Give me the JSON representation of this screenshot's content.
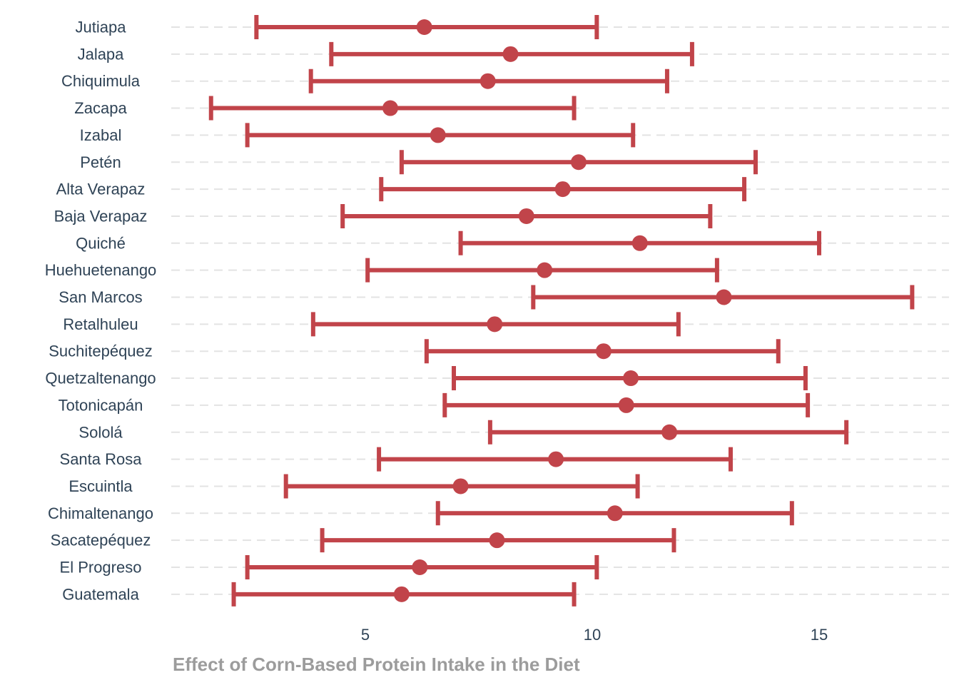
{
  "chart_data": {
    "type": "scatter",
    "subtype": "dot-and-whisker",
    "xlabel": "Effect of Corn-Based Protein Intake in the Diet",
    "ylabel": "",
    "xlim": [
      1.0,
      18.0
    ],
    "xticks": [
      5,
      10,
      15
    ],
    "grid": "horizontal dashed",
    "color": "#c1444a",
    "categories": [
      "Jutiapa",
      "Jalapa",
      "Chiquimula",
      "Zacapa",
      "Izabal",
      "Petén",
      "Alta Verapaz",
      "Baja Verapaz",
      "Quiché",
      "Huehuetenango",
      "San Marcos",
      "Retalhuleu",
      "Suchitepéquez",
      "Quetzaltenango",
      "Totonicapán",
      "Sololá",
      "Santa Rosa",
      "Escuintla",
      "Chimaltenango",
      "Sacatepéquez",
      "El Progreso",
      "Guatemala"
    ],
    "estimates": [
      6.3,
      8.2,
      7.7,
      5.55,
      6.6,
      9.7,
      9.35,
      8.55,
      11.05,
      8.95,
      12.9,
      7.85,
      10.25,
      10.85,
      10.75,
      11.7,
      9.2,
      7.1,
      10.5,
      7.9,
      6.2,
      5.8
    ],
    "lower": [
      2.6,
      4.25,
      3.8,
      1.6,
      2.4,
      5.8,
      5.35,
      4.5,
      7.1,
      5.05,
      8.7,
      3.85,
      6.35,
      6.95,
      6.75,
      7.75,
      5.3,
      3.25,
      6.6,
      4.05,
      2.4,
      2.1
    ],
    "upper": [
      10.1,
      12.2,
      11.65,
      9.6,
      10.9,
      13.6,
      13.35,
      12.6,
      15.0,
      12.75,
      17.05,
      11.9,
      14.1,
      14.7,
      14.75,
      15.6,
      13.05,
      11.0,
      14.4,
      11.8,
      10.1,
      9.6
    ]
  }
}
